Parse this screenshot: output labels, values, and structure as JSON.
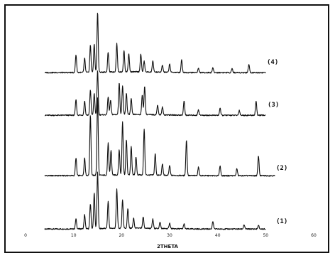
{
  "chart_data": {
    "type": "line",
    "title": "",
    "xlabel": "2THETA",
    "ylabel": "",
    "xlim": [
      0,
      60
    ],
    "xticks": [
      "0",
      "10",
      "20",
      "30",
      "40",
      "50",
      "60"
    ],
    "grid": false,
    "legend": "none",
    "line_color": "#111111",
    "series": [
      {
        "name": "(1)",
        "baseline": 0,
        "x_end": 50,
        "peaks": [
          [
            10.5,
            14
          ],
          [
            12.3,
            20
          ],
          [
            13.5,
            35
          ],
          [
            14.3,
            50
          ],
          [
            15.0,
            80
          ],
          [
            17.2,
            38
          ],
          [
            19.0,
            55
          ],
          [
            20.2,
            40
          ],
          [
            21.3,
            28
          ],
          [
            22.5,
            14
          ],
          [
            24.5,
            16
          ],
          [
            26.5,
            13
          ],
          [
            28.0,
            9
          ],
          [
            30.0,
            8
          ],
          [
            33.0,
            7
          ],
          [
            39.0,
            11
          ],
          [
            45.5,
            6
          ],
          [
            48.5,
            5
          ]
        ]
      },
      {
        "name": "(2)",
        "baseline": 0,
        "x_end": 52,
        "peaks": [
          [
            10.5,
            25
          ],
          [
            12.3,
            25
          ],
          [
            13.5,
            85
          ],
          [
            15.0,
            110
          ],
          [
            17.2,
            45
          ],
          [
            17.8,
            35
          ],
          [
            19.5,
            35
          ],
          [
            20.2,
            75
          ],
          [
            21.0,
            50
          ],
          [
            22.0,
            40
          ],
          [
            23.0,
            25
          ],
          [
            24.7,
            65
          ],
          [
            27.0,
            30
          ],
          [
            28.5,
            16
          ],
          [
            30.0,
            14
          ],
          [
            33.5,
            50
          ],
          [
            36.0,
            12
          ],
          [
            40.5,
            14
          ],
          [
            44.0,
            10
          ],
          [
            48.5,
            28
          ]
        ]
      },
      {
        "name": "(3)",
        "baseline": 0,
        "x_end": 50,
        "peaks": [
          [
            10.5,
            22
          ],
          [
            12.3,
            20
          ],
          [
            13.5,
            35
          ],
          [
            14.3,
            30
          ],
          [
            15.0,
            62
          ],
          [
            17.2,
            25
          ],
          [
            17.7,
            20
          ],
          [
            19.5,
            45
          ],
          [
            20.2,
            40
          ],
          [
            21.0,
            30
          ],
          [
            22.0,
            22
          ],
          [
            24.3,
            28
          ],
          [
            24.8,
            40
          ],
          [
            27.5,
            14
          ],
          [
            28.5,
            11
          ],
          [
            33.0,
            20
          ],
          [
            36.0,
            8
          ],
          [
            40.5,
            10
          ],
          [
            44.5,
            7
          ],
          [
            48.0,
            20
          ]
        ]
      },
      {
        "name": "(4)",
        "baseline": 0,
        "x_end": 50,
        "peaks": [
          [
            10.5,
            25
          ],
          [
            12.3,
            20
          ],
          [
            13.5,
            38
          ],
          [
            14.3,
            40
          ],
          [
            15.0,
            85
          ],
          [
            17.2,
            28
          ],
          [
            19.0,
            40
          ],
          [
            20.5,
            30
          ],
          [
            21.5,
            25
          ],
          [
            24.0,
            25
          ],
          [
            24.7,
            15
          ],
          [
            26.5,
            16
          ],
          [
            28.5,
            10
          ],
          [
            30.0,
            12
          ],
          [
            32.5,
            18
          ],
          [
            36.0,
            6
          ],
          [
            39.0,
            7
          ],
          [
            43.0,
            6
          ],
          [
            46.5,
            12
          ]
        ]
      }
    ]
  }
}
